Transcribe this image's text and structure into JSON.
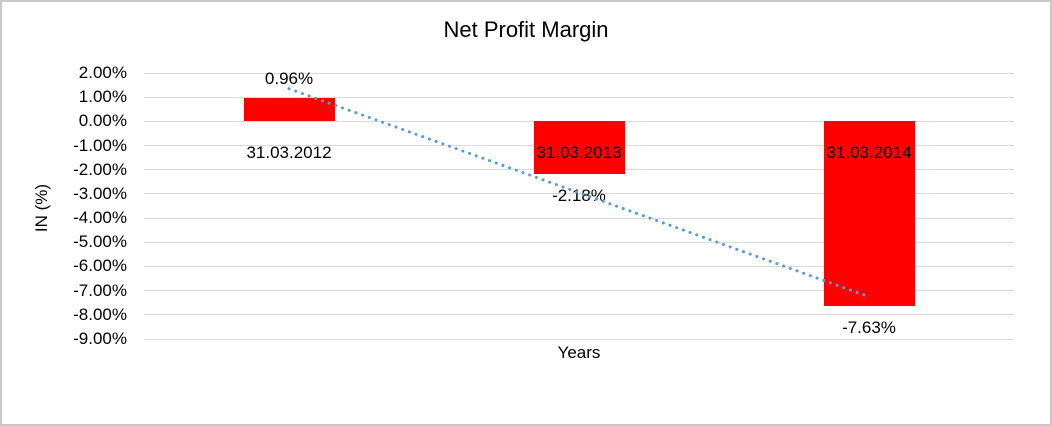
{
  "chart_data": {
    "type": "bar",
    "title": "Net Profit Margin",
    "xlabel": "Years",
    "ylabel": "IN (%)",
    "categories": [
      "31.03.2012",
      "31.03.2013",
      "31.03.2014"
    ],
    "values": [
      0.96,
      -2.18,
      -7.63
    ],
    "value_labels": [
      "0.96%",
      "-2.18%",
      "-7.63%"
    ],
    "ylim": [
      -9,
      2
    ],
    "ytick_step": 1,
    "yticks": [
      "2.00%",
      "1.00%",
      "0.00%",
      "-1.00%",
      "-2.00%",
      "-3.00%",
      "-4.00%",
      "-5.00%",
      "-6.00%",
      "-7.00%",
      "-8.00%",
      "-9.00%"
    ],
    "grid": true,
    "legend": "none",
    "bar_color": "#ff0000",
    "gridline_color": "#d9d9d9",
    "text_color": "#000000",
    "border_color": "#c9c9c9",
    "trendline": {
      "style": "dotted",
      "color": "#5b9bd5",
      "x": [
        0,
        2
      ],
      "y": [
        1.35,
        -7.25
      ]
    }
  }
}
